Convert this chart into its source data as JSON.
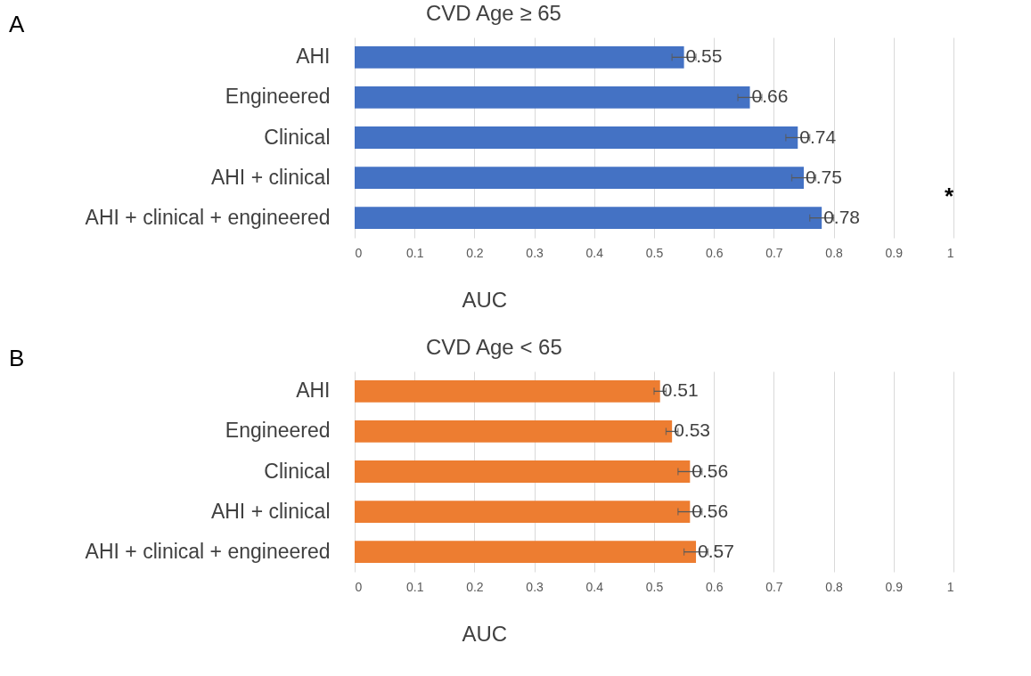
{
  "chart_data": [
    {
      "type": "bar",
      "orientation": "horizontal",
      "title": "CVD Age ≥  65",
      "xlabel": "AUC",
      "categories": [
        "AHI",
        "Engineered",
        "Clinical",
        "AHI + clinical",
        "AHI + clinical + engineered"
      ],
      "series": [
        {
          "color": "#4472c4",
          "values": [
            0.55,
            0.66,
            0.74,
            0.75,
            0.78
          ],
          "errors": [
            0.02,
            0.02,
            0.02,
            0.02,
            0.02
          ]
        }
      ],
      "xlim": [
        0,
        1
      ],
      "xticks": [
        0,
        0.1,
        0.2,
        0.3,
        0.4,
        0.5,
        0.6,
        0.7,
        0.8,
        0.9,
        1
      ],
      "grid": "x",
      "data_labels": true,
      "annotations": [
        "A",
        "*"
      ]
    },
    {
      "type": "bar",
      "orientation": "horizontal",
      "title": "CVD Age < 65",
      "xlabel": "AUC",
      "categories": [
        "AHI",
        "Engineered",
        "Clinical",
        "AHI + clinical",
        "AHI + clinical + engineered"
      ],
      "series": [
        {
          "color": "#ed7d31",
          "values": [
            0.51,
            0.53,
            0.56,
            0.56,
            0.57
          ],
          "errors": [
            0.01,
            0.01,
            0.02,
            0.02,
            0.02
          ]
        }
      ],
      "xlim": [
        0,
        1
      ],
      "xticks": [
        0,
        0.1,
        0.2,
        0.3,
        0.4,
        0.5,
        0.6,
        0.7,
        0.8,
        0.9,
        1
      ],
      "grid": "x",
      "data_labels": true,
      "annotations": [
        "B"
      ]
    }
  ]
}
